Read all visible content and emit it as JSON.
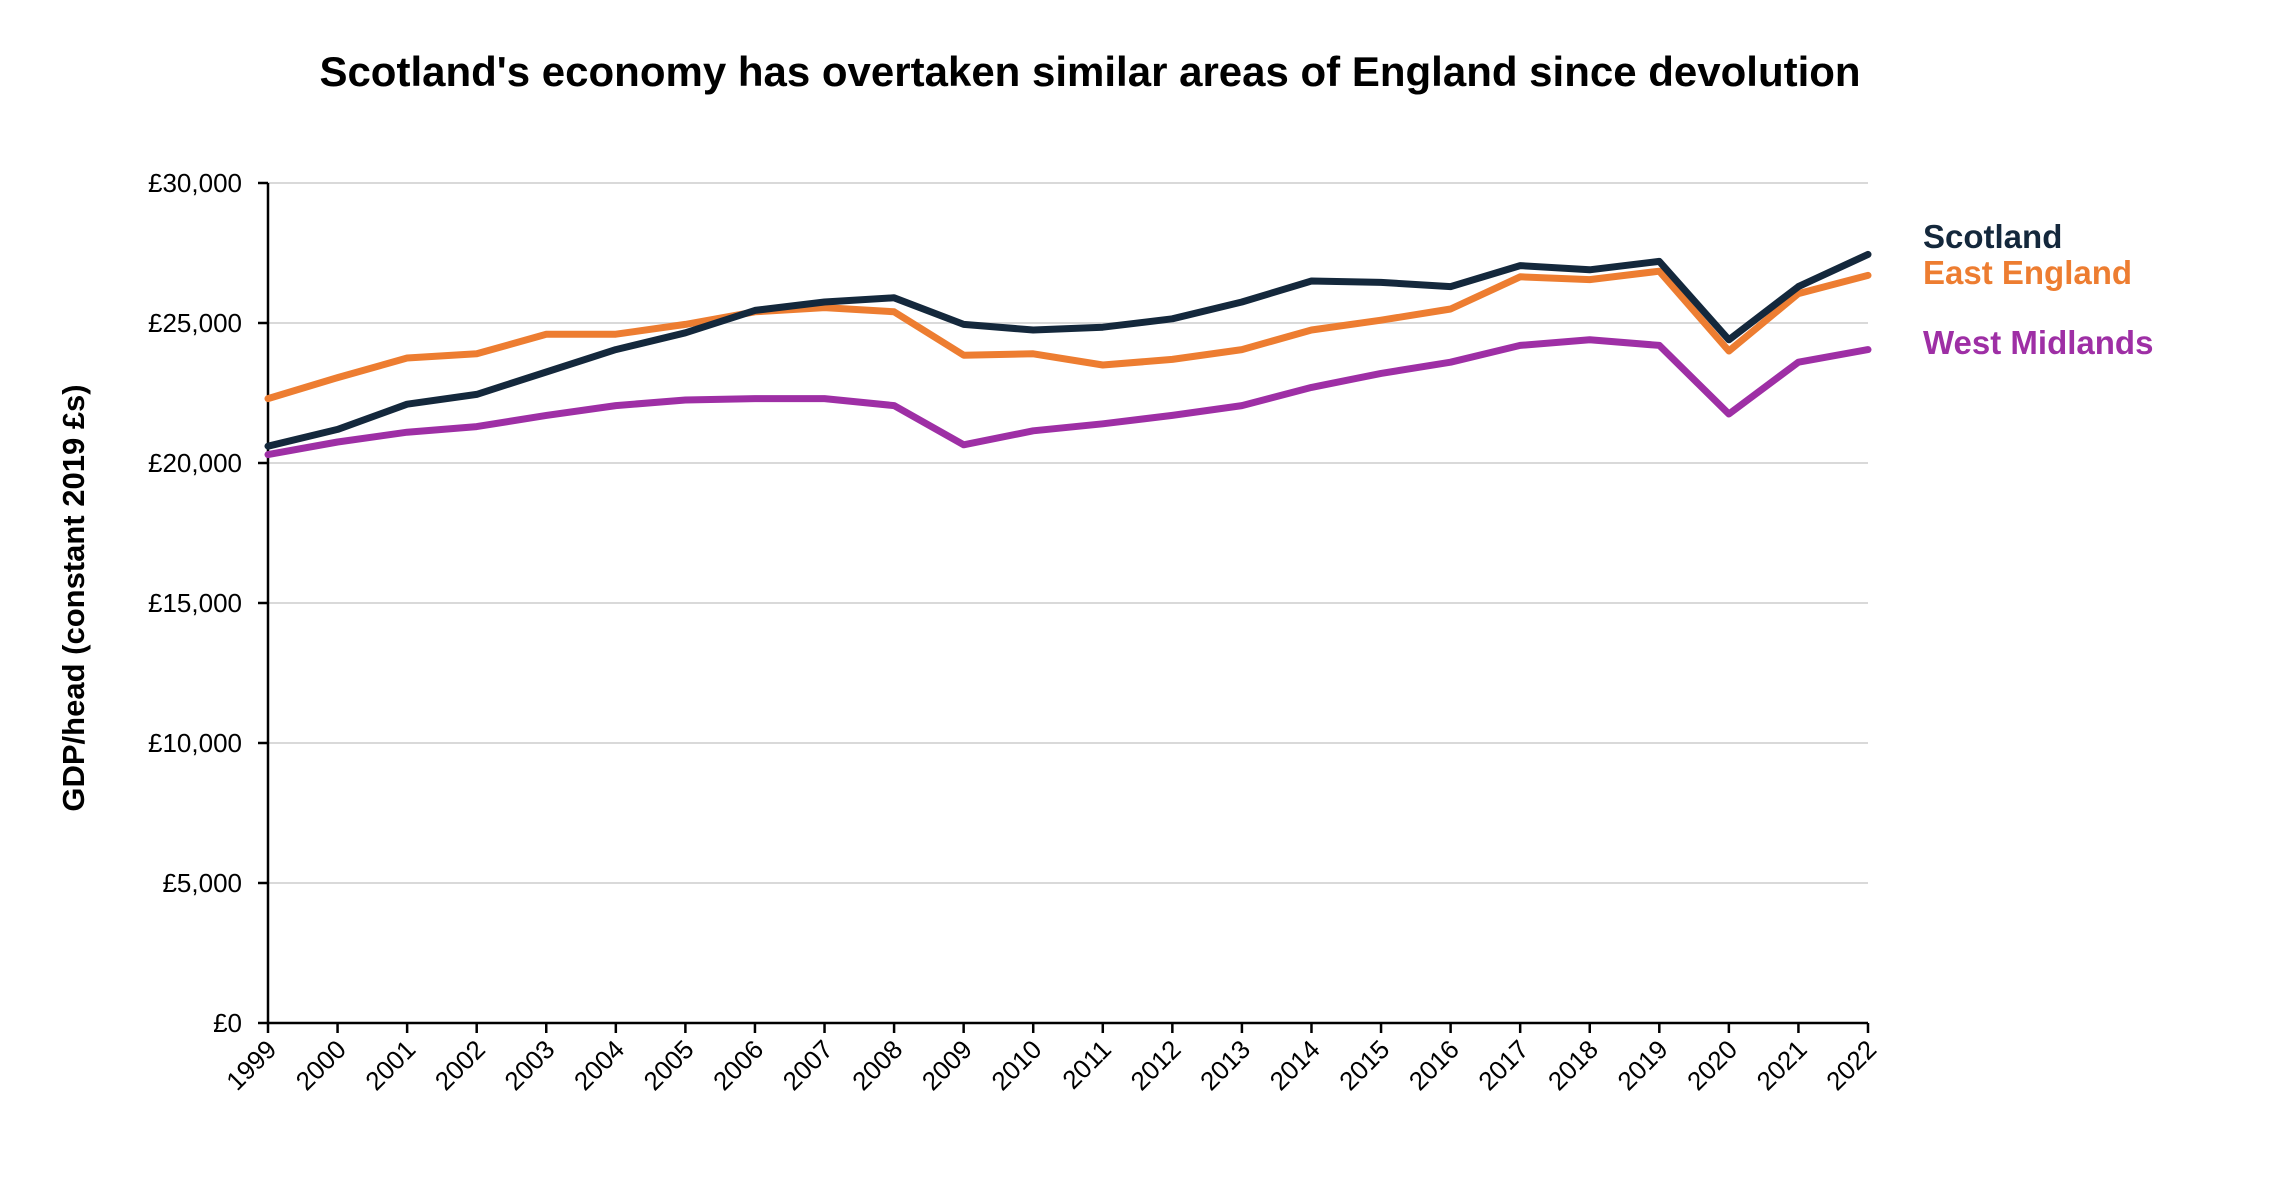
{
  "chart_data": {
    "type": "line",
    "title": "Scotland's economy has overtaken similar areas of England since devolution",
    "xlabel": "",
    "ylabel": "GDP/head (constant 2019 £s)",
    "ylim": [
      0,
      30000
    ],
    "yticks": [
      0,
      5000,
      10000,
      15000,
      20000,
      25000,
      30000
    ],
    "ytick_labels": [
      "£0",
      "£5,000",
      "£10,000",
      "£15,000",
      "£20,000",
      "£25,000",
      "£30,000"
    ],
    "grid": true,
    "legend_position": "right, labels at line ends",
    "x": [
      "1999",
      "2000",
      "2001",
      "2002",
      "2003",
      "2004",
      "2005",
      "2006",
      "2007",
      "2008",
      "2009",
      "2010",
      "2011",
      "2012",
      "2013",
      "2014",
      "2015",
      "2016",
      "2017",
      "2018",
      "2019",
      "2020",
      "2021",
      "2022"
    ],
    "series": [
      {
        "name": "Scotland",
        "color": "#14283c",
        "values": [
          20600,
          21200,
          22100,
          22450,
          23250,
          24050,
          24650,
          25450,
          25750,
          25900,
          24950,
          24750,
          24850,
          25150,
          25750,
          26500,
          26450,
          26300,
          27050,
          26900,
          27200,
          24400,
          26300,
          27450
        ]
      },
      {
        "name": "East England",
        "color": "#ed7d31",
        "values": [
          22300,
          23050,
          23750,
          23900,
          24600,
          24600,
          24950,
          25400,
          25550,
          25400,
          23850,
          23900,
          23500,
          23700,
          24050,
          24750,
          25100,
          25500,
          26650,
          26550,
          26850,
          24000,
          26050,
          26700
        ]
      },
      {
        "name": "West Midlands",
        "color": "#9e2fa5",
        "values": [
          20300,
          20750,
          21100,
          21300,
          21700,
          22050,
          22250,
          22300,
          22300,
          22050,
          20650,
          21150,
          21400,
          21700,
          22050,
          22700,
          23200,
          23600,
          24200,
          24400,
          24200,
          21750,
          23600,
          24050
        ]
      }
    ]
  }
}
